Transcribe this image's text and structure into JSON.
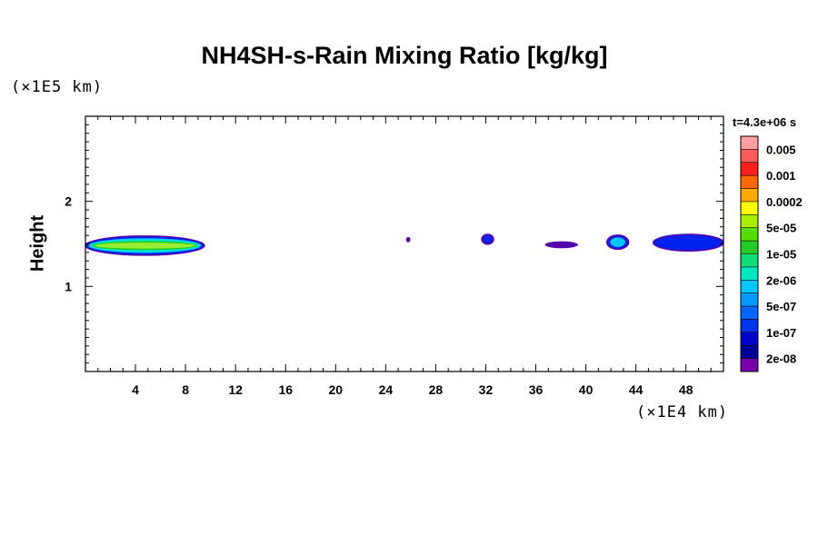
{
  "chart_data": {
    "type": "heatmap",
    "title": "NH4SH-s-Rain Mixing Ratio [kg/kg]",
    "ylabel": "Height",
    "xlabel": "",
    "y_unit_label": "(×1E5 km)",
    "x_unit_label": "(×1E4 km)",
    "time_label": "t=4.3e+06 s",
    "xlim": [
      0,
      51
    ],
    "ylim": [
      0,
      3
    ],
    "x_ticks": [
      4,
      8,
      12,
      16,
      20,
      24,
      28,
      32,
      36,
      40,
      44,
      48
    ],
    "y_ticks": [
      1,
      2
    ],
    "colorbar": {
      "labels": [
        "0.005",
        "0.001",
        "0.0002",
        "5e-05",
        "1e-05",
        "2e-06",
        "5e-07",
        "1e-07",
        "2e-08"
      ],
      "colors": [
        "#ffa0a0",
        "#ff5a5a",
        "#ff1e1e",
        "#ff6600",
        "#ffaa00",
        "#ffff00",
        "#aaee00",
        "#55dd00",
        "#22cc22",
        "#11dd77",
        "#00e8c0",
        "#00c8ff",
        "#0099ff",
        "#0066ff",
        "#0033ee",
        "#0000cc",
        "#000099",
        "#7700aa"
      ]
    },
    "features": [
      {
        "x": [
          0,
          9.5
        ],
        "y": [
          1.37,
          1.59
        ],
        "max_level": "5e-05"
      },
      {
        "x": [
          25.7,
          25.9
        ],
        "y": [
          1.53,
          1.57
        ],
        "max_level": "2e-08"
      },
      {
        "x": [
          31.7,
          32.6
        ],
        "y": [
          1.5,
          1.61
        ],
        "max_level": "1e-07"
      },
      {
        "x": [
          36.8,
          39.3
        ],
        "y": [
          1.46,
          1.52
        ],
        "max_level": "2e-08"
      },
      {
        "x": [
          41.7,
          43.4
        ],
        "y": [
          1.44,
          1.6
        ],
        "max_level": "5e-07"
      },
      {
        "x": [
          45.4,
          51
        ],
        "y": [
          1.42,
          1.61
        ],
        "max_level": "1e-07"
      }
    ]
  }
}
